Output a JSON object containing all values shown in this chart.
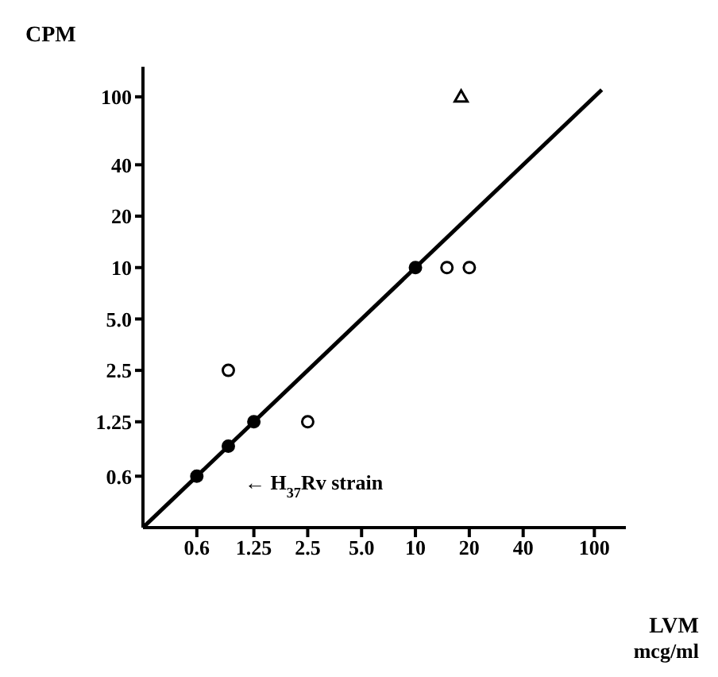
{
  "chart_data": {
    "type": "scatter",
    "xlabel": "LVM mcg/ml",
    "ylabel": "CPM",
    "log": "xy",
    "xlim": [
      0.3,
      150
    ],
    "ylim": [
      0.3,
      150
    ],
    "xticks": [
      0.6,
      1.25,
      2.5,
      {
        "value": 5,
        "label": "5.0"
      },
      10,
      20,
      40,
      100
    ],
    "yticks": [
      0.6,
      1.25,
      2.5,
      {
        "value": 5,
        "label": "5.0"
      },
      10,
      20,
      40,
      100
    ],
    "annotations": [
      "← H$_{37}$Rv strain"
    ],
    "series": [
      {
        "type": "line",
        "color": "#000000",
        "x": [
          0.3,
          110
        ],
        "values": [
          0.3,
          110
        ],
        "marker": "none"
      },
      {
        "color": "#000000",
        "marker": "circle",
        "x": [
          0.6,
          0.9,
          1.25,
          10
        ],
        "values": [
          0.6,
          0.9,
          1.25,
          10
        ]
      },
      {
        "color": "#ffffff",
        "marker": "circle",
        "x": [
          0.9,
          2.5,
          15,
          20
        ],
        "values": [
          2.5,
          1.25,
          10,
          10
        ]
      },
      {
        "color": "#ffffff",
        "marker": "triangle",
        "x": [
          18
        ],
        "values": [
          100
        ]
      }
    ]
  }
}
